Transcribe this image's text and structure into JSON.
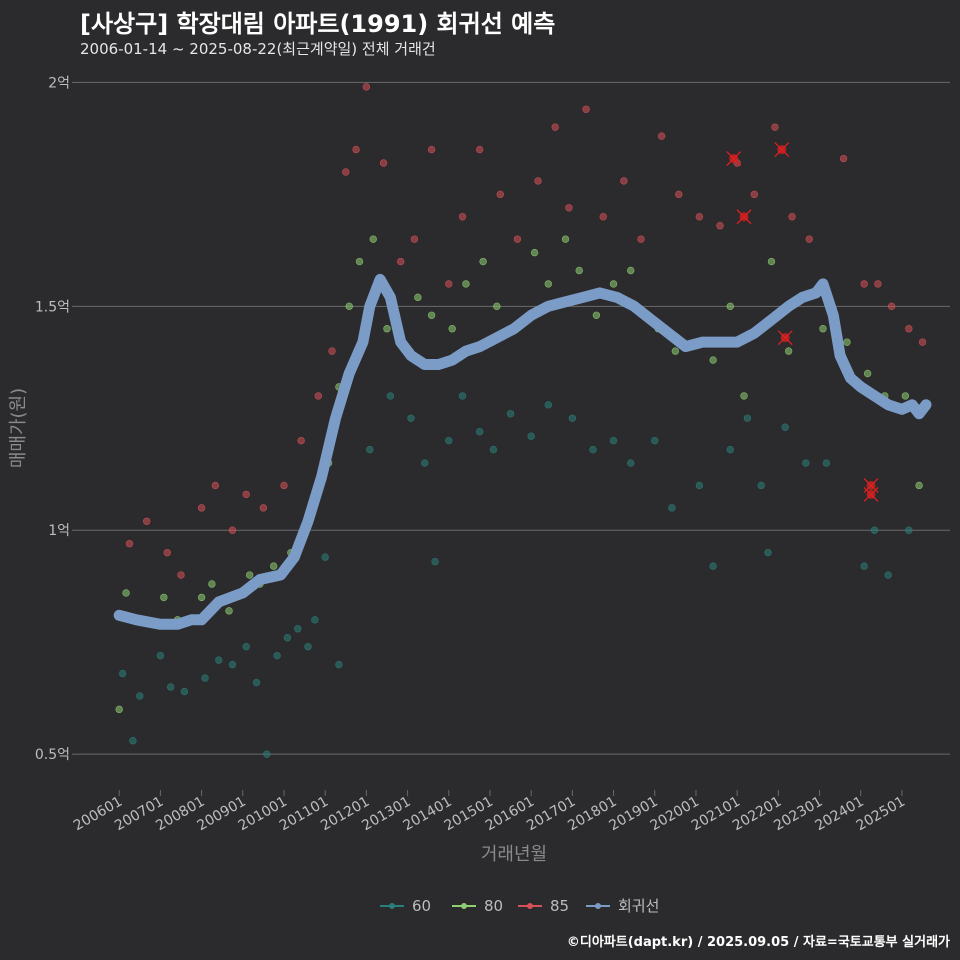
{
  "title": "[사상구] 학장대림 아파트(1991) 회귀선 예측",
  "subtitle": "2006-01-14 ~ 2025-08-22(최근계약일) 전체 거래건",
  "footer": "©디아파트(dapt.kr) / 2025.09.05 / 자료=국토교통부 실거래가",
  "colors": {
    "background": "#2b2a2c",
    "grid": "#6a6a6a",
    "s60": "#2a7f7a",
    "s80": "#8fce73",
    "s85": "#d6515a",
    "regression": "#7b9cc7",
    "outlier": "#e02020"
  },
  "chart_data": {
    "type": "scatter",
    "xlabel": "거래년월",
    "ylabel": "매매가(원)",
    "x_range": [
      "2005-01",
      "2026-03"
    ],
    "ylim": [
      0.42,
      2.05
    ],
    "y_unit": "억",
    "y_ticks": [
      {
        "value": 0.5,
        "label": "0.5억"
      },
      {
        "value": 1.0,
        "label": "1억"
      },
      {
        "value": 1.5,
        "label": "1.5억"
      },
      {
        "value": 2.0,
        "label": "2억"
      }
    ],
    "x_ticks": [
      "200601",
      "200701",
      "200801",
      "200901",
      "201001",
      "201101",
      "201201",
      "201301",
      "201401",
      "201501",
      "201601",
      "201701",
      "201801",
      "201901",
      "202001",
      "202101",
      "202201",
      "202301",
      "202401",
      "202501"
    ],
    "grid": "horizontal",
    "legend_position": "bottom",
    "legend": [
      "60",
      "80",
      "85",
      "회귀선"
    ],
    "series": [
      {
        "name": "60",
        "kind": "points",
        "points": [
          [
            "2006-02",
            0.68
          ],
          [
            "2006-05",
            0.53
          ],
          [
            "2006-07",
            0.63
          ],
          [
            "2007-01",
            0.72
          ],
          [
            "2007-04",
            0.65
          ],
          [
            "2007-08",
            0.64
          ],
          [
            "2008-02",
            0.67
          ],
          [
            "2008-06",
            0.71
          ],
          [
            "2008-10",
            0.7
          ],
          [
            "2009-02",
            0.74
          ],
          [
            "2009-05",
            0.66
          ],
          [
            "2009-08",
            0.5
          ],
          [
            "2009-11",
            0.72
          ],
          [
            "2010-02",
            0.76
          ],
          [
            "2010-05",
            0.78
          ],
          [
            "2010-08",
            0.74
          ],
          [
            "2010-10",
            0.8
          ],
          [
            "2011-01",
            0.94
          ],
          [
            "2011-05",
            0.7
          ],
          [
            "2012-02",
            1.18
          ],
          [
            "2012-08",
            1.3
          ],
          [
            "2013-02",
            1.25
          ],
          [
            "2013-06",
            1.15
          ],
          [
            "2013-09",
            0.93
          ],
          [
            "2014-01",
            1.2
          ],
          [
            "2014-05",
            1.3
          ],
          [
            "2014-10",
            1.22
          ],
          [
            "2015-02",
            1.18
          ],
          [
            "2015-07",
            1.26
          ],
          [
            "2016-01",
            1.21
          ],
          [
            "2016-06",
            1.28
          ],
          [
            "2017-01",
            1.25
          ],
          [
            "2017-07",
            1.18
          ],
          [
            "2018-01",
            1.2
          ],
          [
            "2018-06",
            1.15
          ],
          [
            "2019-01",
            1.2
          ],
          [
            "2019-06",
            1.05
          ],
          [
            "2020-02",
            1.1
          ],
          [
            "2020-06",
            0.92
          ],
          [
            "2020-11",
            1.18
          ],
          [
            "2021-04",
            1.25
          ],
          [
            "2021-08",
            1.1
          ],
          [
            "2021-10",
            0.95
          ],
          [
            "2022-03",
            1.23
          ],
          [
            "2022-09",
            1.15
          ],
          [
            "2023-03",
            1.15
          ],
          [
            "2024-02",
            0.92
          ],
          [
            "2024-05",
            1.0
          ],
          [
            "2024-09",
            0.9
          ],
          [
            "2025-03",
            1.0
          ]
        ]
      },
      {
        "name": "80",
        "kind": "points",
        "points": [
          [
            "2006-01",
            0.6
          ],
          [
            "2006-03",
            0.86
          ],
          [
            "2006-07",
            0.8
          ],
          [
            "2007-02",
            0.85
          ],
          [
            "2007-06",
            0.8
          ],
          [
            "2008-01",
            0.85
          ],
          [
            "2008-04",
            0.88
          ],
          [
            "2008-09",
            0.82
          ],
          [
            "2009-03",
            0.9
          ],
          [
            "2009-06",
            0.88
          ],
          [
            "2009-10",
            0.92
          ],
          [
            "2010-03",
            0.95
          ],
          [
            "2010-07",
            1.0
          ],
          [
            "2011-02",
            1.15
          ],
          [
            "2011-05",
            1.32
          ],
          [
            "2011-08",
            1.5
          ],
          [
            "2011-11",
            1.6
          ],
          [
            "2012-03",
            1.65
          ],
          [
            "2012-07",
            1.45
          ],
          [
            "2013-01",
            1.4
          ],
          [
            "2013-04",
            1.52
          ],
          [
            "2013-08",
            1.48
          ],
          [
            "2014-02",
            1.45
          ],
          [
            "2014-06",
            1.55
          ],
          [
            "2014-11",
            1.6
          ],
          [
            "2015-03",
            1.5
          ],
          [
            "2015-08",
            1.45
          ],
          [
            "2016-02",
            1.62
          ],
          [
            "2016-06",
            1.55
          ],
          [
            "2016-11",
            1.65
          ],
          [
            "2017-03",
            1.58
          ],
          [
            "2017-08",
            1.48
          ],
          [
            "2018-01",
            1.55
          ],
          [
            "2018-06",
            1.58
          ],
          [
            "2019-02",
            1.45
          ],
          [
            "2019-07",
            1.4
          ],
          [
            "2020-01",
            1.42
          ],
          [
            "2020-06",
            1.38
          ],
          [
            "2020-11",
            1.5
          ],
          [
            "2021-03",
            1.3
          ],
          [
            "2021-07",
            1.45
          ],
          [
            "2021-11",
            1.6
          ],
          [
            "2022-04",
            1.4
          ],
          [
            "2022-08",
            1.52
          ],
          [
            "2023-02",
            1.45
          ],
          [
            "2023-09",
            1.42
          ],
          [
            "2024-03",
            1.35
          ],
          [
            "2024-08",
            1.3
          ],
          [
            "2025-02",
            1.3
          ],
          [
            "2025-06",
            1.1
          ]
        ]
      },
      {
        "name": "85",
        "kind": "points",
        "points": [
          [
            "2006-04",
            0.97
          ],
          [
            "2006-09",
            1.02
          ],
          [
            "2007-03",
            0.95
          ],
          [
            "2007-07",
            0.9
          ],
          [
            "2008-01",
            1.05
          ],
          [
            "2008-05",
            1.1
          ],
          [
            "2008-10",
            1.0
          ],
          [
            "2009-02",
            1.08
          ],
          [
            "2009-07",
            1.05
          ],
          [
            "2010-01",
            1.1
          ],
          [
            "2010-06",
            1.2
          ],
          [
            "2010-11",
            1.3
          ],
          [
            "2011-03",
            1.4
          ],
          [
            "2011-07",
            1.8
          ],
          [
            "2011-10",
            1.85
          ],
          [
            "2012-01",
            1.99
          ],
          [
            "2012-06",
            1.82
          ],
          [
            "2012-11",
            1.6
          ],
          [
            "2013-03",
            1.65
          ],
          [
            "2013-08",
            1.85
          ],
          [
            "2014-01",
            1.55
          ],
          [
            "2014-05",
            1.7
          ],
          [
            "2014-10",
            1.85
          ],
          [
            "2015-04",
            1.75
          ],
          [
            "2015-09",
            1.65
          ],
          [
            "2016-03",
            1.78
          ],
          [
            "2016-08",
            1.9
          ],
          [
            "2016-12",
            1.72
          ],
          [
            "2017-05",
            1.94
          ],
          [
            "2017-10",
            1.7
          ],
          [
            "2018-04",
            1.78
          ],
          [
            "2018-09",
            1.65
          ],
          [
            "2019-03",
            1.88
          ],
          [
            "2019-08",
            1.75
          ],
          [
            "2020-02",
            1.7
          ],
          [
            "2020-08",
            1.68
          ],
          [
            "2021-01",
            1.82
          ],
          [
            "2021-06",
            1.75
          ],
          [
            "2021-12",
            1.9
          ],
          [
            "2022-05",
            1.7
          ],
          [
            "2022-10",
            1.65
          ],
          [
            "2023-04",
            1.5
          ],
          [
            "2023-08",
            1.83
          ],
          [
            "2024-02",
            1.55
          ],
          [
            "2024-06",
            1.55
          ],
          [
            "2024-10",
            1.5
          ],
          [
            "2025-03",
            1.45
          ],
          [
            "2025-07",
            1.42
          ]
        ]
      },
      {
        "name": "outliers",
        "kind": "marked",
        "points": [
          [
            "2020-12",
            1.83
          ],
          [
            "2021-03",
            1.7
          ],
          [
            "2022-02",
            1.85
          ],
          [
            "2022-03",
            1.43
          ],
          [
            "2024-04",
            1.1
          ],
          [
            "2024-04",
            1.08
          ]
        ]
      },
      {
        "name": "회귀선",
        "kind": "line",
        "points": [
          [
            "2006-01",
            0.81
          ],
          [
            "2006-06",
            0.8
          ],
          [
            "2007-01",
            0.79
          ],
          [
            "2007-06",
            0.79
          ],
          [
            "2007-10",
            0.8
          ],
          [
            "2008-01",
            0.8
          ],
          [
            "2008-06",
            0.84
          ],
          [
            "2009-01",
            0.86
          ],
          [
            "2009-06",
            0.89
          ],
          [
            "2009-12",
            0.9
          ],
          [
            "2010-04",
            0.94
          ],
          [
            "2010-08",
            1.02
          ],
          [
            "2010-12",
            1.12
          ],
          [
            "2011-04",
            1.25
          ],
          [
            "2011-08",
            1.35
          ],
          [
            "2011-12",
            1.42
          ],
          [
            "2012-02",
            1.5
          ],
          [
            "2012-05",
            1.56
          ],
          [
            "2012-08",
            1.52
          ],
          [
            "2012-11",
            1.42
          ],
          [
            "2013-02",
            1.39
          ],
          [
            "2013-06",
            1.37
          ],
          [
            "2013-10",
            1.37
          ],
          [
            "2014-02",
            1.38
          ],
          [
            "2014-06",
            1.4
          ],
          [
            "2014-10",
            1.41
          ],
          [
            "2015-03",
            1.43
          ],
          [
            "2015-08",
            1.45
          ],
          [
            "2016-01",
            1.48
          ],
          [
            "2016-06",
            1.5
          ],
          [
            "2016-11",
            1.51
          ],
          [
            "2017-04",
            1.52
          ],
          [
            "2017-09",
            1.53
          ],
          [
            "2018-02",
            1.52
          ],
          [
            "2018-07",
            1.5
          ],
          [
            "2018-12",
            1.47
          ],
          [
            "2019-05",
            1.44
          ],
          [
            "2019-10",
            1.41
          ],
          [
            "2020-03",
            1.42
          ],
          [
            "2020-08",
            1.42
          ],
          [
            "2021-01",
            1.42
          ],
          [
            "2021-06",
            1.44
          ],
          [
            "2021-11",
            1.47
          ],
          [
            "2022-04",
            1.5
          ],
          [
            "2022-08",
            1.52
          ],
          [
            "2022-12",
            1.53
          ],
          [
            "2023-02",
            1.55
          ],
          [
            "2023-05",
            1.48
          ],
          [
            "2023-07",
            1.39
          ],
          [
            "2023-10",
            1.34
          ],
          [
            "2024-01",
            1.32
          ],
          [
            "2024-05",
            1.3
          ],
          [
            "2024-09",
            1.28
          ],
          [
            "2025-01",
            1.27
          ],
          [
            "2025-04",
            1.28
          ],
          [
            "2025-06",
            1.26
          ],
          [
            "2025-08",
            1.28
          ]
        ]
      }
    ]
  }
}
